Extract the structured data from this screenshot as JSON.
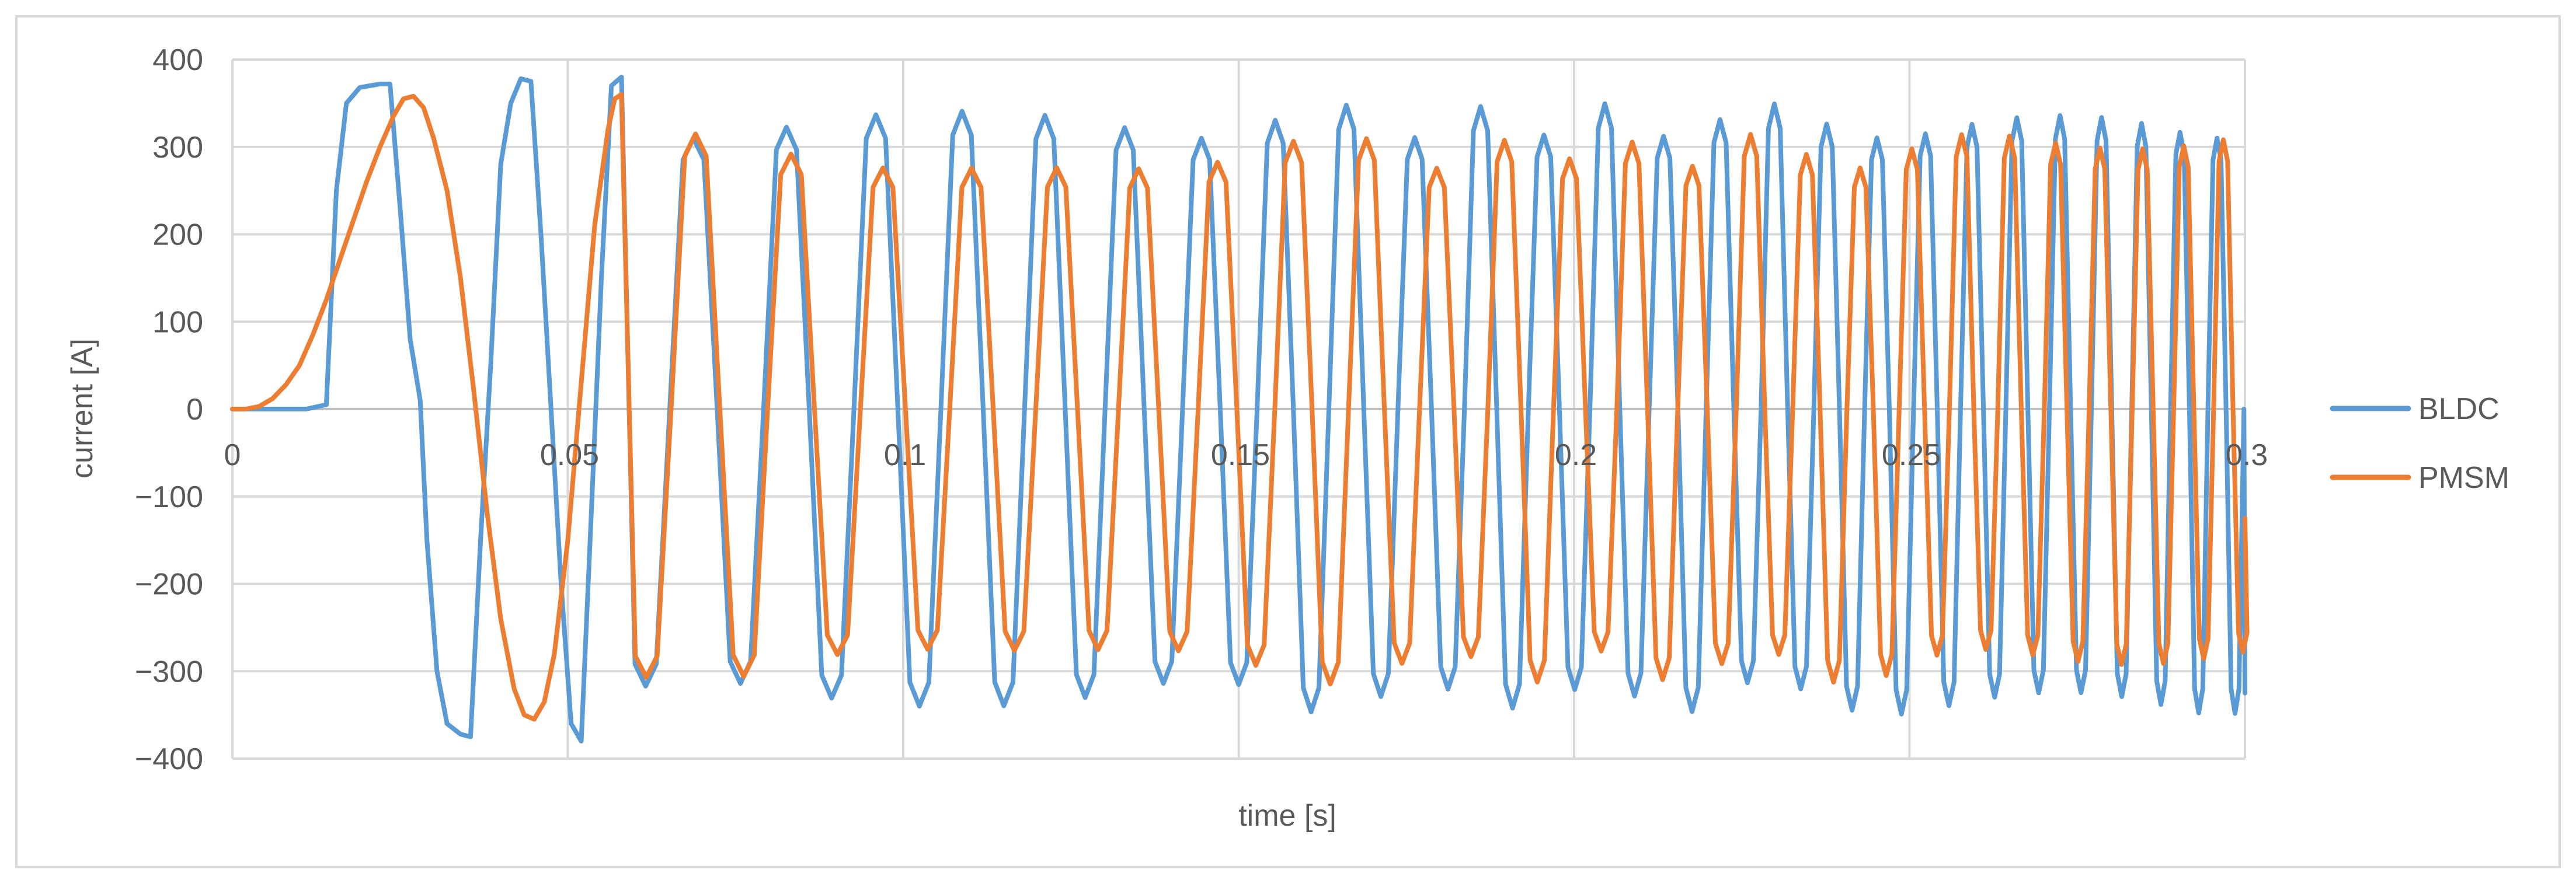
{
  "chart_data": {
    "type": "line",
    "title": "",
    "xlabel": "time [s]",
    "ylabel": "current [A]",
    "xlim": [
      0,
      0.3
    ],
    "ylim": [
      -400,
      400
    ],
    "x_ticks": [
      0,
      0.05,
      0.1,
      0.15,
      0.2,
      0.25,
      0.3
    ],
    "x_tick_labels": [
      "0",
      "0.05",
      "0.1",
      "0.15",
      "0.2",
      "0.25",
      "0.3"
    ],
    "y_ticks": [
      400,
      300,
      200,
      100,
      0,
      -100,
      -200,
      -300,
      -400
    ],
    "y_tick_labels": [
      "400",
      "300",
      "200",
      "100",
      "0",
      "-100",
      "-200",
      "-300",
      "-400"
    ],
    "grid": true,
    "legend_position": "right",
    "series": [
      {
        "name": "BLDC",
        "color": "#5B9BD5",
        "amplitude": 350,
        "points": [
          [
            0,
            0
          ],
          [
            0.004,
            0
          ],
          [
            0.008,
            0
          ],
          [
            0.011,
            0
          ],
          [
            0.014,
            5
          ],
          [
            0.0155,
            250
          ],
          [
            0.017,
            350
          ],
          [
            0.019,
            368
          ],
          [
            0.022,
            372
          ],
          [
            0.0235,
            372
          ],
          [
            0.025,
            230
          ],
          [
            0.0265,
            80
          ],
          [
            0.028,
            10
          ],
          [
            0.029,
            -150
          ],
          [
            0.0305,
            -300
          ],
          [
            0.032,
            -360
          ],
          [
            0.034,
            -372
          ],
          [
            0.0355,
            -375
          ],
          [
            0.037,
            -150
          ],
          [
            0.0385,
            50
          ],
          [
            0.04,
            280
          ],
          [
            0.0415,
            350
          ],
          [
            0.043,
            378
          ],
          [
            0.0445,
            375
          ],
          [
            0.046,
            200
          ],
          [
            0.0475,
            0
          ],
          [
            0.049,
            -200
          ],
          [
            0.0505,
            -360
          ],
          [
            0.052,
            -380
          ],
          [
            0.0535,
            -120
          ],
          [
            0.055,
            150
          ],
          [
            0.0565,
            370
          ],
          [
            0.058,
            380
          ]
        ],
        "end_value": -325
      },
      {
        "name": "PMSM",
        "color": "#ED7D31",
        "amplitude": 315,
        "points": [
          [
            0,
            0
          ],
          [
            0.002,
            0
          ],
          [
            0.004,
            3
          ],
          [
            0.006,
            12
          ],
          [
            0.008,
            28
          ],
          [
            0.01,
            50
          ],
          [
            0.012,
            85
          ],
          [
            0.014,
            125
          ],
          [
            0.016,
            170
          ],
          [
            0.018,
            215
          ],
          [
            0.02,
            260
          ],
          [
            0.022,
            300
          ],
          [
            0.024,
            335
          ],
          [
            0.0255,
            355
          ],
          [
            0.027,
            358
          ],
          [
            0.0285,
            345
          ],
          [
            0.03,
            310
          ],
          [
            0.032,
            250
          ],
          [
            0.034,
            150
          ],
          [
            0.036,
            20
          ],
          [
            0.038,
            -120
          ],
          [
            0.04,
            -240
          ],
          [
            0.042,
            -320
          ],
          [
            0.0435,
            -350
          ],
          [
            0.045,
            -355
          ],
          [
            0.0465,
            -335
          ],
          [
            0.048,
            -280
          ],
          [
            0.05,
            -150
          ],
          [
            0.052,
            30
          ],
          [
            0.054,
            210
          ],
          [
            0.056,
            320
          ],
          [
            0.057,
            355
          ],
          [
            0.058,
            360
          ]
        ],
        "end_value": -125
      }
    ]
  }
}
